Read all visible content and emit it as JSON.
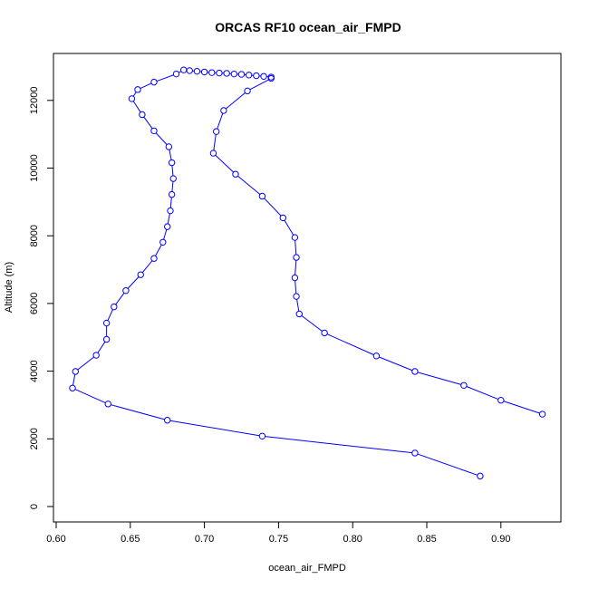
{
  "chart_data": {
    "type": "line",
    "title": "ORCAS RF10 ocean_air_FMPD",
    "xlabel": "ocean_air_FMPD",
    "ylabel": "Altitude (m)",
    "xlim": [
      0.6,
      0.93
    ],
    "ylim": [
      0,
      13000
    ],
    "xticks": [
      "0.60",
      "0.65",
      "0.70",
      "0.75",
      "0.80",
      "0.85",
      "0.90"
    ],
    "yticks": [
      "0",
      "2000",
      "4000",
      "6000",
      "8000",
      "10000",
      "12000"
    ],
    "xtick_values": [
      0.6,
      0.65,
      0.7,
      0.75,
      0.8,
      0.85,
      0.9
    ],
    "ytick_values": [
      0,
      2000,
      4000,
      6000,
      8000,
      10000,
      12000
    ],
    "grid": false,
    "marker": "open-circle",
    "color": "#0000ff",
    "series": [
      {
        "x": [
          0.886,
          0.842,
          0.739,
          0.675,
          0.635,
          0.611,
          0.613,
          0.627,
          0.634,
          0.634,
          0.639,
          0.647,
          0.657,
          0.666,
          0.672,
          0.675,
          0.677,
          0.678,
          0.679,
          0.678,
          0.676,
          0.666,
          0.658,
          0.651,
          0.655,
          0.666,
          0.681,
          0.686,
          0.69,
          0.695,
          0.7,
          0.705,
          0.71,
          0.715,
          0.72,
          0.725,
          0.73,
          0.735,
          0.74,
          0.745,
          0.745,
          0.729,
          0.713,
          0.708,
          0.706,
          0.721,
          0.739,
          0.753,
          0.761,
          0.762,
          0.761,
          0.762,
          0.764,
          0.781,
          0.816,
          0.842,
          0.875,
          0.9,
          0.928
        ],
        "y": [
          900,
          1580,
          2080,
          2550,
          3030,
          3500,
          3990,
          4470,
          4940,
          5420,
          5900,
          6380,
          6850,
          7330,
          7810,
          8270,
          8740,
          9220,
          9690,
          10160,
          10630,
          11100,
          11580,
          12050,
          12320,
          12540,
          12780,
          12900,
          12880,
          12860,
          12840,
          12820,
          12810,
          12800,
          12780,
          12770,
          12750,
          12730,
          12710,
          12690,
          12650,
          12280,
          11700,
          11080,
          10440,
          9820,
          9170,
          8530,
          7950,
          7360,
          6760,
          6210,
          5690,
          5130,
          4450,
          3990,
          3580,
          3140,
          2730
        ]
      }
    ]
  }
}
